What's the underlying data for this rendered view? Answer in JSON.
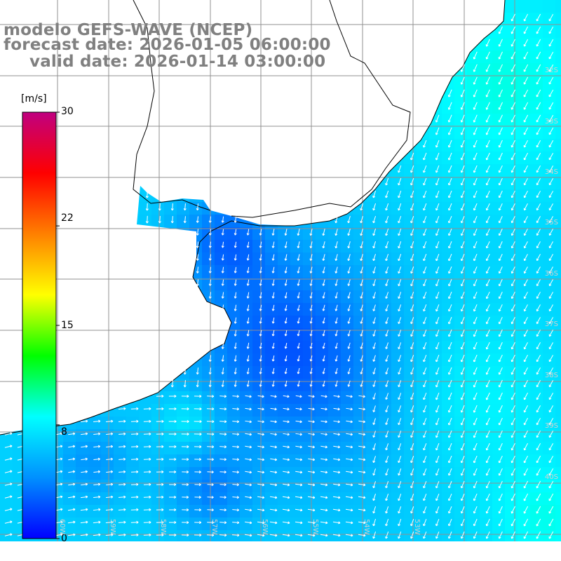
{
  "title": {
    "model": "modelo GEFS-WAVE (NCEP)",
    "forecast": "forecast date: 2026-01-05 06:00:00",
    "valid": "valid date: 2026-01-14 03:00:00"
  },
  "legend": {
    "unit": "[m/s]",
    "min": 0,
    "max": 30,
    "ticks": [
      {
        "label": "30",
        "value": 30
      },
      {
        "label": "22",
        "value": 22
      },
      {
        "label": "15",
        "value": 15
      },
      {
        "label": "8",
        "value": 8
      },
      {
        "label": "0",
        "value": 0
      }
    ],
    "colors": [
      "#0000ff",
      "#0090ff",
      "#00ffff",
      "#00ff00",
      "#ffff00",
      "#ff8000",
      "#ff0000",
      "#c00080"
    ]
  },
  "map": {
    "land_color": "#ffffff",
    "coastline_color": "#000000",
    "grid_color": "#909090",
    "lat_labels": [
      "32S",
      "33S",
      "34S",
      "35S",
      "36S",
      "37S",
      "38S",
      "39S",
      "40S"
    ],
    "lon_labels": [
      "60W",
      "59W",
      "58W",
      "57W",
      "56W",
      "55W",
      "54W",
      "53W"
    ]
  }
}
